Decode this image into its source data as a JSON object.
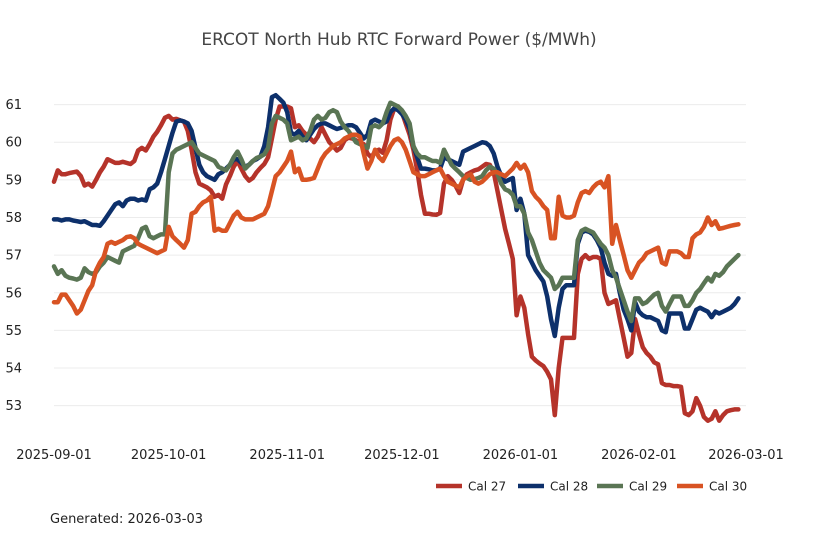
{
  "chart_data": {
    "type": "line",
    "title": "ERCOT North Hub RTC Forward Power ($/MWh)",
    "xlabel": "",
    "ylabel": "",
    "ylim": [
      52.3,
      61.6
    ],
    "y_ticks": [
      53,
      54,
      55,
      56,
      57,
      58,
      59,
      60,
      61
    ],
    "grid": "horizontal",
    "legend_position": "bottom-right",
    "x_ticks": [
      {
        "label": "2025-09-01",
        "day": 0
      },
      {
        "label": "2025-10-01",
        "day": 30
      },
      {
        "label": "2025-11-01",
        "day": 61
      },
      {
        "label": "2025-12-01",
        "day": 91
      },
      {
        "label": "2026-01-01",
        "day": 122
      },
      {
        "label": "2026-02-01",
        "day": 153
      },
      {
        "label": "2026-03-01",
        "day": 181
      }
    ],
    "x_days": [
      0,
      1,
      2,
      3,
      4,
      5,
      6,
      7,
      8,
      9,
      10,
      11,
      12,
      13,
      14,
      15,
      16,
      17,
      18,
      19,
      20,
      21,
      22,
      23,
      24,
      25,
      26,
      27,
      28,
      29,
      30,
      31,
      32,
      33,
      34,
      35,
      36,
      37,
      38,
      39,
      40,
      41,
      42,
      43,
      44,
      45,
      46,
      47,
      48,
      49,
      50,
      51,
      52,
      53,
      54,
      55,
      56,
      57,
      58,
      59,
      60,
      61,
      62,
      63,
      64,
      65,
      66,
      67,
      68,
      69,
      70,
      71,
      72,
      73,
      74,
      75,
      76,
      77,
      78,
      79,
      80,
      81,
      82,
      83,
      84,
      85,
      86,
      87,
      88,
      89,
      90,
      91,
      92,
      93,
      94,
      95,
      96,
      97,
      98,
      99,
      100,
      101,
      102,
      103,
      104,
      105,
      106,
      107,
      108,
      109,
      110,
      111,
      112,
      113,
      114,
      115,
      116,
      117,
      118,
      119,
      120,
      121,
      122,
      123,
      124,
      125,
      126,
      127,
      128,
      129,
      130,
      131,
      132,
      133,
      134,
      135,
      136,
      137,
      138,
      139,
      140,
      141,
      142,
      143,
      144,
      145,
      146,
      147,
      148,
      149,
      150,
      151,
      152,
      153,
      154,
      155,
      156,
      157,
      158,
      159,
      160,
      161,
      162,
      163,
      164,
      165,
      166,
      167,
      168,
      169,
      170,
      171,
      172,
      173,
      174,
      175,
      176,
      177,
      178,
      179,
      180,
      181,
      182,
      183
    ],
    "series": [
      {
        "name": "Cal 27",
        "color": "#b5332a",
        "values": [
          58.95,
          59.25,
          59.15,
          59.15,
          59.18,
          59.2,
          59.22,
          59.1,
          58.85,
          58.9,
          58.82,
          59.0,
          59.2,
          59.35,
          59.55,
          59.5,
          59.45,
          59.45,
          59.48,
          59.45,
          59.42,
          59.5,
          59.78,
          59.85,
          59.78,
          59.95,
          60.15,
          60.28,
          60.45,
          60.65,
          60.7,
          60.6,
          60.62,
          60.58,
          60.55,
          60.3,
          59.8,
          59.2,
          58.9,
          58.85,
          58.8,
          58.72,
          58.55,
          58.6,
          58.5,
          58.88,
          59.1,
          59.35,
          59.5,
          59.3,
          59.1,
          58.98,
          59.05,
          59.2,
          59.32,
          59.42,
          59.6,
          60.1,
          60.6,
          60.95,
          60.95,
          60.95,
          60.9,
          60.4,
          60.45,
          60.3,
          60.2,
          60.1,
          60.0,
          60.15,
          60.4,
          60.2,
          60.0,
          59.9,
          59.78,
          59.85,
          60.05,
          60.12,
          60.1,
          60.05,
          60.0,
          59.95,
          59.7,
          59.6,
          59.75,
          59.8,
          59.72,
          60.05,
          60.6,
          60.9,
          60.95,
          60.8,
          60.5,
          60.2,
          59.8,
          59.25,
          58.6,
          58.1,
          58.1,
          58.08,
          58.07,
          58.12,
          58.9,
          59.1,
          59.0,
          58.85,
          58.65,
          59.0,
          59.15,
          59.2,
          59.25,
          59.28,
          59.35,
          59.42,
          59.4,
          59.2,
          58.7,
          58.2,
          57.7,
          57.3,
          56.9,
          55.4,
          55.9,
          55.6,
          54.9,
          54.3,
          54.2,
          54.12,
          54.05,
          53.9,
          53.7,
          52.75,
          54.0,
          54.8,
          54.8,
          54.8,
          54.8,
          56.5,
          56.9,
          57.0,
          56.9,
          56.95,
          56.95,
          56.9,
          56.0,
          55.7,
          55.75,
          55.8,
          55.3,
          54.8,
          54.3,
          54.4,
          55.3,
          54.9,
          54.55,
          54.4,
          54.3,
          54.15,
          54.1,
          53.6,
          53.55,
          53.55,
          53.52,
          53.52,
          53.5,
          52.8,
          52.75,
          52.85,
          53.2,
          53.0,
          52.7,
          52.6,
          52.65,
          52.85,
          52.6,
          52.75,
          52.85,
          52.88,
          52.9,
          52.9
        ]
      },
      {
        "name": "Cal 28",
        "color": "#0d306b",
        "values": [
          57.95,
          57.95,
          57.92,
          57.95,
          57.95,
          57.92,
          57.9,
          57.88,
          57.9,
          57.85,
          57.8,
          57.8,
          57.78,
          57.9,
          58.05,
          58.2,
          58.35,
          58.4,
          58.3,
          58.45,
          58.5,
          58.5,
          58.45,
          58.48,
          58.45,
          58.75,
          58.8,
          58.9,
          59.2,
          59.55,
          59.9,
          60.25,
          60.55,
          60.58,
          60.55,
          60.5,
          60.3,
          59.85,
          59.4,
          59.2,
          59.1,
          59.05,
          59.0,
          59.15,
          59.2,
          59.3,
          59.4,
          59.55,
          59.55,
          59.45,
          59.35,
          59.4,
          59.5,
          59.55,
          59.62,
          59.9,
          60.4,
          61.2,
          61.25,
          61.15,
          61.05,
          60.8,
          60.25,
          60.2,
          60.3,
          60.15,
          60.05,
          60.2,
          60.35,
          60.45,
          60.5,
          60.5,
          60.45,
          60.4,
          60.35,
          60.38,
          60.42,
          60.45,
          60.45,
          60.4,
          60.25,
          60.1,
          60.2,
          60.55,
          60.6,
          60.55,
          60.5,
          60.55,
          60.8,
          60.9,
          60.85,
          60.75,
          60.6,
          60.35,
          59.9,
          59.6,
          59.3,
          59.3,
          59.28,
          59.25,
          59.25,
          59.3,
          59.6,
          59.55,
          59.5,
          59.45,
          59.4,
          59.75,
          59.8,
          59.85,
          59.9,
          59.95,
          60.0,
          59.98,
          59.9,
          59.7,
          59.35,
          59.1,
          58.95,
          59.0,
          59.05,
          58.2,
          58.5,
          58.1,
          57.0,
          56.8,
          56.6,
          56.45,
          56.3,
          55.9,
          55.3,
          54.85,
          55.6,
          56.1,
          56.2,
          56.2,
          56.2,
          57.3,
          57.6,
          57.65,
          57.62,
          57.55,
          57.4,
          57.2,
          56.8,
          56.5,
          56.45,
          56.5,
          56.0,
          55.55,
          55.3,
          55.0,
          55.75,
          55.5,
          55.4,
          55.35,
          55.35,
          55.3,
          55.25,
          55.0,
          54.95,
          55.45,
          55.45,
          55.45,
          55.45,
          55.05,
          55.05,
          55.3,
          55.55,
          55.6,
          55.55,
          55.5,
          55.35,
          55.5,
          55.45,
          55.5,
          55.55,
          55.6,
          55.7,
          55.85
        ]
      },
      {
        "name": "Cal 29",
        "color": "#5a7554",
        "values": [
          56.7,
          56.5,
          56.6,
          56.45,
          56.4,
          56.38,
          56.35,
          56.4,
          56.65,
          56.55,
          56.5,
          56.55,
          56.7,
          56.8,
          56.95,
          56.9,
          56.85,
          56.8,
          57.1,
          57.15,
          57.2,
          57.25,
          57.45,
          57.7,
          57.75,
          57.5,
          57.45,
          57.5,
          57.55,
          57.55,
          59.2,
          59.7,
          59.8,
          59.85,
          59.9,
          59.95,
          60.0,
          59.85,
          59.7,
          59.65,
          59.6,
          59.55,
          59.5,
          59.35,
          59.3,
          59.25,
          59.4,
          59.6,
          59.75,
          59.55,
          59.3,
          59.4,
          59.5,
          59.58,
          59.62,
          59.68,
          59.85,
          60.5,
          60.7,
          60.65,
          60.6,
          60.5,
          60.05,
          60.1,
          60.15,
          60.05,
          60.1,
          60.3,
          60.6,
          60.7,
          60.6,
          60.65,
          60.8,
          60.85,
          60.8,
          60.55,
          60.4,
          60.3,
          60.15,
          60.0,
          59.95,
          59.9,
          59.85,
          60.4,
          60.45,
          60.4,
          60.5,
          60.8,
          61.05,
          61.0,
          60.95,
          60.85,
          60.7,
          60.5,
          59.9,
          59.7,
          59.6,
          59.6,
          59.55,
          59.5,
          59.5,
          59.45,
          59.8,
          59.6,
          59.4,
          59.3,
          59.2,
          59.1,
          59.05,
          59.0,
          59.02,
          59.05,
          59.1,
          59.25,
          59.35,
          59.3,
          59.15,
          58.9,
          58.75,
          58.7,
          58.6,
          58.3,
          58.3,
          58.1,
          57.6,
          57.4,
          57.1,
          56.8,
          56.6,
          56.5,
          56.4,
          56.1,
          56.2,
          56.4,
          56.4,
          56.4,
          56.4,
          57.4,
          57.65,
          57.7,
          57.65,
          57.6,
          57.45,
          57.3,
          57.2,
          57.0,
          56.6,
          56.4,
          56.1,
          55.8,
          55.5,
          55.25,
          55.85,
          55.85,
          55.7,
          55.75,
          55.85,
          55.95,
          56.0,
          55.65,
          55.5,
          55.7,
          55.9,
          55.9,
          55.9,
          55.65,
          55.65,
          55.8,
          56.0,
          56.1,
          56.25,
          56.4,
          56.3,
          56.5,
          56.45,
          56.55,
          56.7,
          56.8,
          56.9,
          57.0
        ]
      },
      {
        "name": "Cal 30",
        "color": "#d85323",
        "values": [
          55.75,
          55.75,
          55.95,
          55.95,
          55.8,
          55.65,
          55.45,
          55.55,
          55.8,
          56.05,
          56.2,
          56.6,
          56.8,
          56.95,
          57.3,
          57.35,
          57.3,
          57.35,
          57.4,
          57.48,
          57.5,
          57.45,
          57.3,
          57.25,
          57.2,
          57.15,
          57.1,
          57.05,
          57.1,
          57.15,
          57.75,
          57.5,
          57.4,
          57.3,
          57.2,
          57.4,
          58.1,
          58.15,
          58.3,
          58.4,
          58.45,
          58.55,
          57.65,
          57.7,
          57.65,
          57.65,
          57.85,
          58.05,
          58.15,
          58.0,
          57.95,
          57.95,
          57.95,
          58.0,
          58.05,
          58.1,
          58.3,
          58.7,
          59.1,
          59.2,
          59.35,
          59.5,
          59.75,
          59.2,
          59.3,
          59.0,
          59.0,
          59.02,
          59.05,
          59.3,
          59.55,
          59.7,
          59.8,
          59.9,
          59.95,
          60.0,
          60.1,
          60.15,
          60.2,
          60.2,
          60.15,
          59.7,
          59.3,
          59.5,
          59.8,
          59.6,
          59.5,
          59.7,
          59.9,
          60.05,
          60.1,
          60.0,
          59.8,
          59.5,
          59.2,
          59.15,
          59.1,
          59.1,
          59.15,
          59.2,
          59.25,
          59.3,
          59.1,
          58.95,
          58.9,
          58.85,
          58.8,
          59.0,
          59.1,
          59.15,
          58.95,
          58.9,
          58.95,
          59.05,
          59.15,
          59.2,
          59.2,
          59.15,
          59.1,
          59.2,
          59.3,
          59.45,
          59.3,
          59.4,
          59.2,
          58.7,
          58.55,
          58.45,
          58.3,
          58.2,
          57.45,
          57.45,
          58.55,
          58.05,
          58.0,
          58.0,
          58.05,
          58.4,
          58.65,
          58.7,
          58.65,
          58.8,
          58.9,
          58.95,
          58.8,
          59.1,
          57.3,
          57.8,
          57.4,
          57.0,
          56.6,
          56.4,
          56.6,
          56.8,
          56.9,
          57.05,
          57.1,
          57.15,
          57.2,
          56.8,
          56.75,
          57.1,
          57.1,
          57.1,
          57.05,
          56.95,
          56.95,
          57.45,
          57.55,
          57.6,
          57.75,
          58.0,
          57.8,
          57.9,
          57.7,
          57.72,
          57.75,
          57.78,
          57.8,
          57.82
        ]
      }
    ]
  },
  "footer": {
    "generated_text": "Generated: 2026-03-03"
  }
}
